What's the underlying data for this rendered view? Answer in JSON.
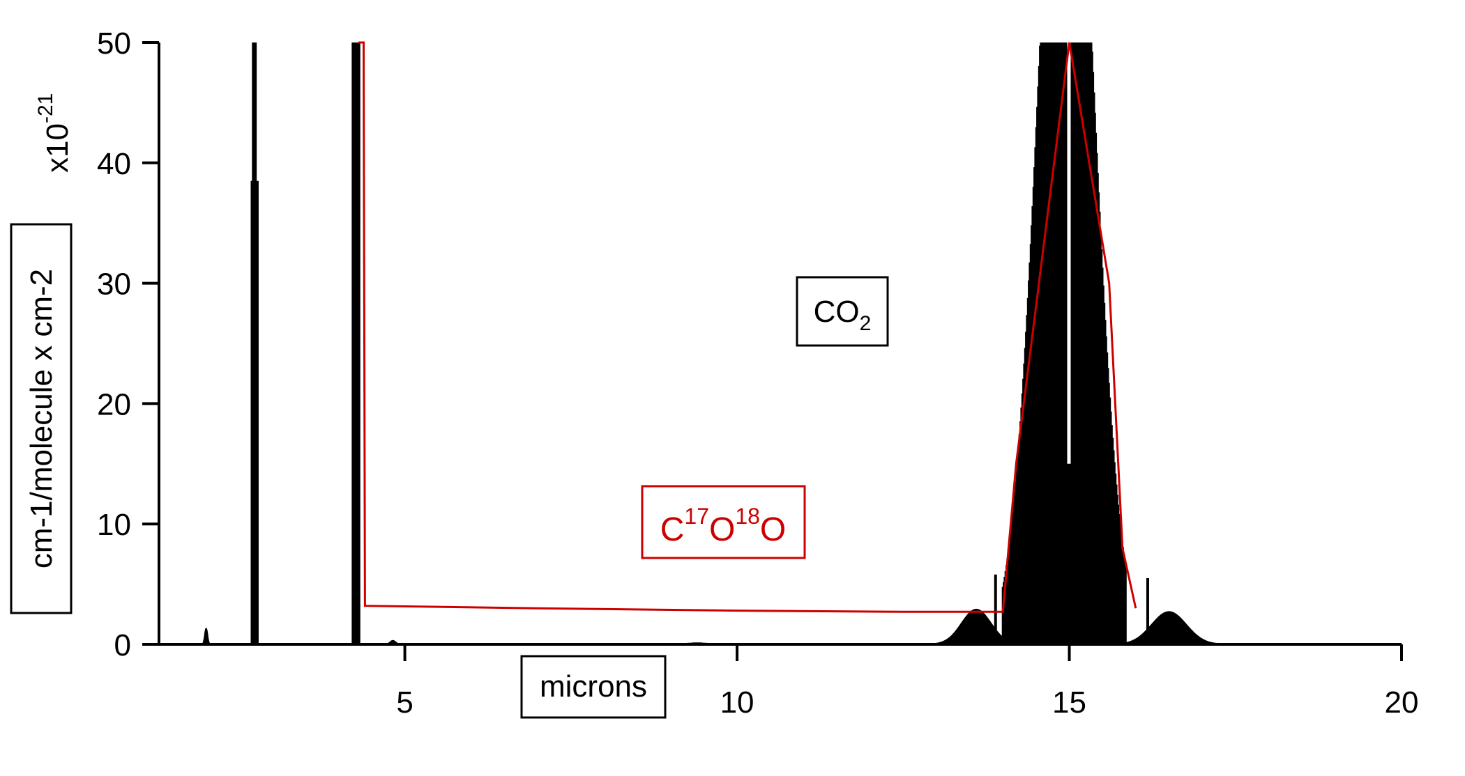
{
  "chart_data": {
    "type": "line",
    "xlabel": "microns",
    "ylabel": "cm-1/molecule x cm-2",
    "y_scale_label": {
      "base": "x10",
      "exponent": "-21"
    },
    "xlim": [
      1.3,
      20
    ],
    "ylim": [
      0,
      50
    ],
    "x_ticks": [
      5,
      10,
      15,
      20
    ],
    "y_ticks": [
      0,
      10,
      20,
      30,
      40,
      50
    ],
    "grid": false,
    "annotations": [
      {
        "id": "co2",
        "text": "CO",
        "sub": "2",
        "color": "#000000"
      },
      {
        "id": "c17o18o",
        "parts": [
          "C",
          "17",
          "O",
          "18",
          "O"
        ],
        "color": "#cc0000"
      }
    ],
    "series": [
      {
        "label": "CO2",
        "color": "#000000",
        "style": "spectrum",
        "baseline": 0,
        "bands": [
          {
            "kind": "peak",
            "center": 2.01,
            "amp": 1.3,
            "width": 0.02
          },
          {
            "kind": "block",
            "from": 2.68,
            "to": 2.8,
            "top": 38.5
          },
          {
            "kind": "spike",
            "x": 2.72,
            "y": 50
          },
          {
            "kind": "spike",
            "x": 2.75,
            "y": 50
          },
          {
            "kind": "block",
            "from": 4.2,
            "to": 4.33,
            "top": 50
          },
          {
            "kind": "peak",
            "center": 4.82,
            "amp": 0.3,
            "width": 0.04
          },
          {
            "kind": "peak",
            "center": 9.4,
            "amp": 0.1,
            "width": 0.15
          },
          {
            "kind": "peak",
            "center": 13.6,
            "amp": 2.9,
            "width": 0.22
          },
          {
            "kind": "spike",
            "x": 13.89,
            "y": 5.8
          },
          {
            "kind": "comb",
            "from": 14.0,
            "to": 15.85,
            "center": 14.95,
            "width": 0.4,
            "top": 50,
            "step": 0.014
          },
          {
            "kind": "spike",
            "x": 16.18,
            "y": 5.5
          },
          {
            "kind": "peak",
            "center": 16.5,
            "amp": 2.7,
            "width": 0.26
          }
        ]
      },
      {
        "label": "C17O18O",
        "color": "#cc0000",
        "style": "line",
        "x": [
          4.3,
          4.38,
          4.4,
          7.0,
          10.0,
          12.5,
          14.0,
          14.2,
          15.0,
          15.6,
          15.8,
          16.0
        ],
        "y": [
          50,
          50,
          3.2,
          3.0,
          2.8,
          2.7,
          2.7,
          15,
          50,
          30,
          8,
          3
        ]
      }
    ]
  }
}
